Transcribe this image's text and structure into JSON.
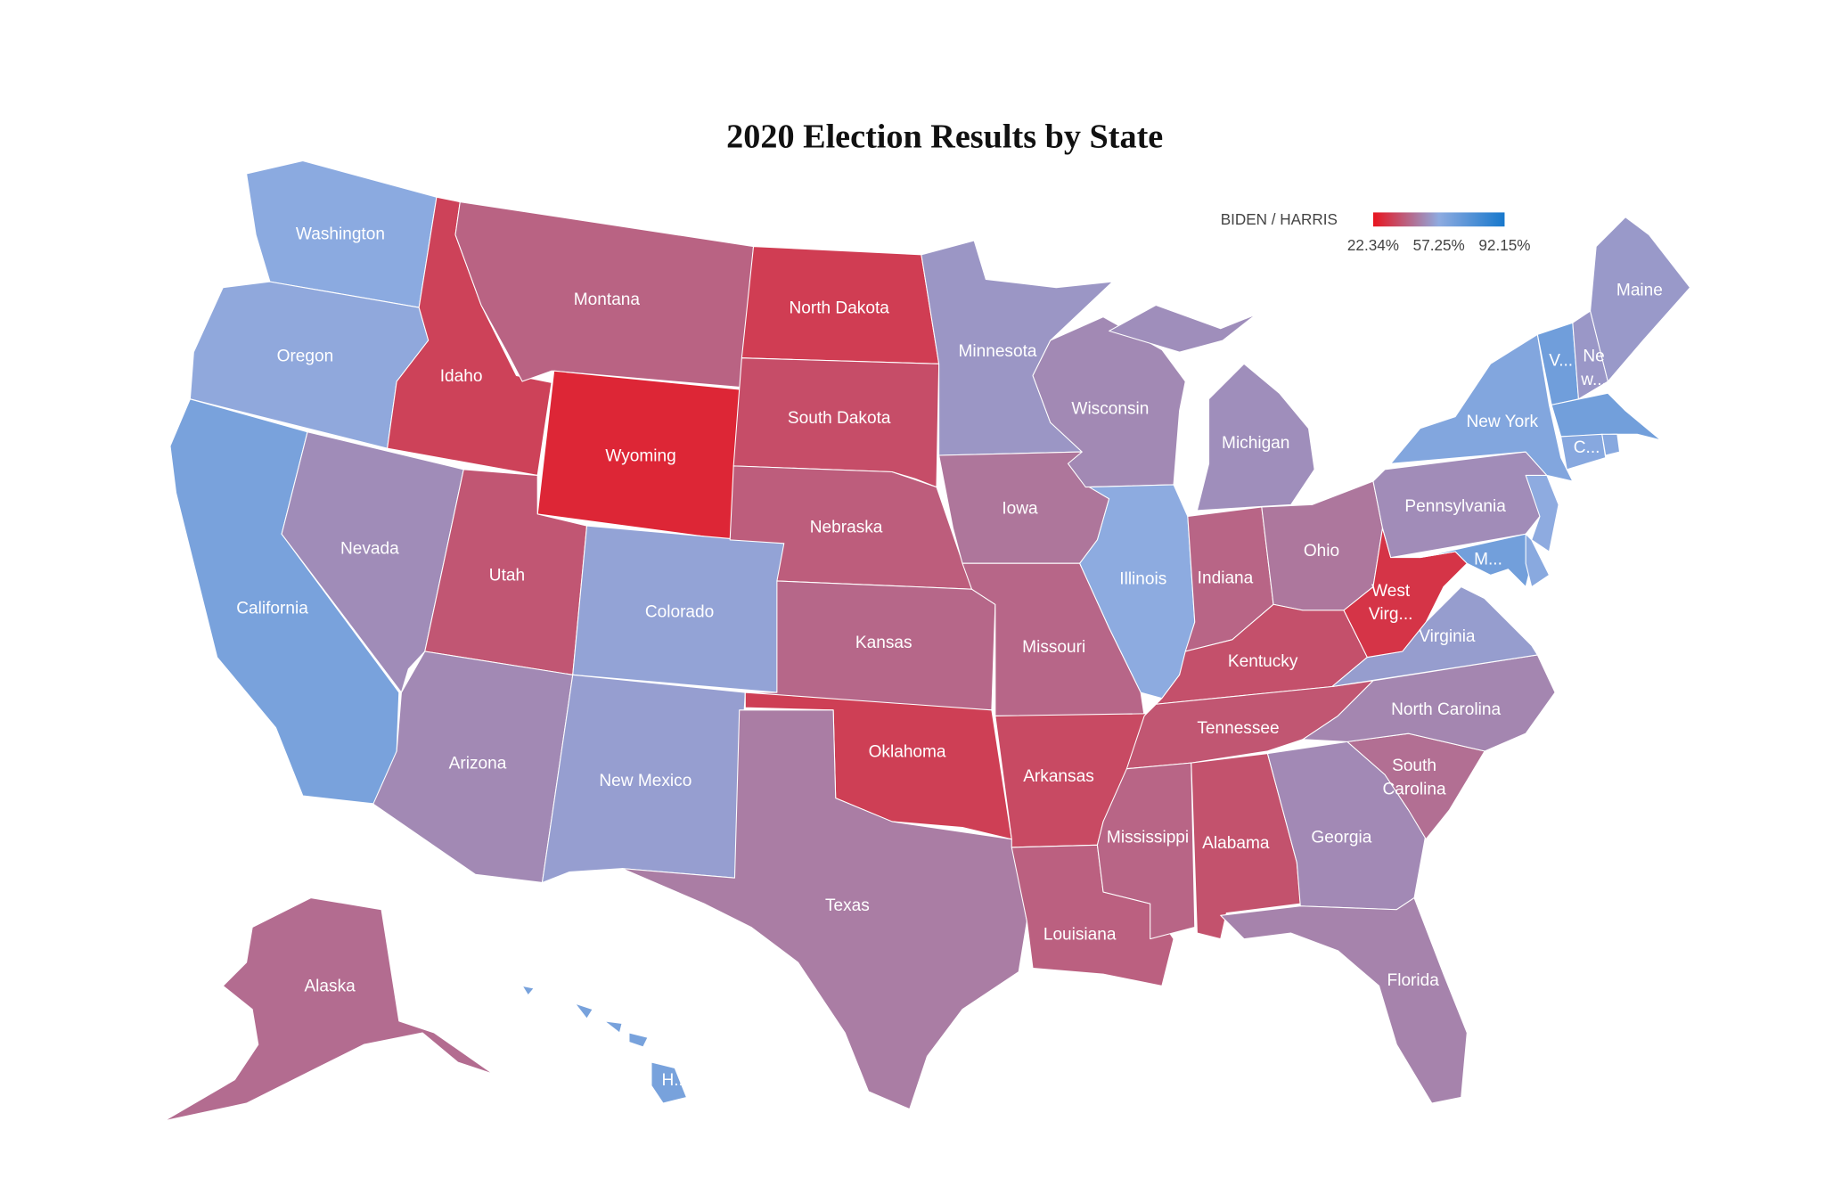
{
  "title": "2020 Election Results by State",
  "legend": {
    "title": "BIDEN / HARRIS",
    "stops": [
      {
        "value": 22.34,
        "label": "22.34%",
        "color": "#e8141e"
      },
      {
        "value": 57.25,
        "label": "57.25%",
        "color": "#8eabe0"
      },
      {
        "value": 92.15,
        "label": "92.15%",
        "color": "#1778cc"
      }
    ]
  },
  "states": [
    {
      "label": "Washington",
      "value": 58
    },
    {
      "label": "Oregon",
      "value": 56.5
    },
    {
      "label": "California",
      "value": 63.5
    },
    {
      "label": "Nevada",
      "value": 50.1
    },
    {
      "label": "Idaho",
      "value": 33
    },
    {
      "label": "Montana",
      "value": 40.5
    },
    {
      "label": "Wyoming",
      "value": 26.6
    },
    {
      "label": "Utah",
      "value": 37.6
    },
    {
      "label": "Colorado",
      "value": 55.4
    },
    {
      "label": "Arizona",
      "value": 49.4
    },
    {
      "label": "New Mexico",
      "value": 54.3
    },
    {
      "label": "North Dakota",
      "value": 31.8
    },
    {
      "label": "South Dakota",
      "value": 35.6
    },
    {
      "label": "Nebraska",
      "value": 39.2
    },
    {
      "label": "Kansas",
      "value": 41.6
    },
    {
      "label": "Oklahoma",
      "value": 32.3
    },
    {
      "label": "Texas",
      "value": 46.5
    },
    {
      "label": "Minnesota",
      "value": 52.4
    },
    {
      "label": "Iowa",
      "value": 44.9
    },
    {
      "label": "Missouri",
      "value": 41.4
    },
    {
      "label": "Arkansas",
      "value": 34.8
    },
    {
      "label": "Louisiana",
      "value": 39.9
    },
    {
      "label": "Wisconsin",
      "value": 49.4
    },
    {
      "label": "Illinois",
      "value": 57.5
    },
    {
      "label": "Michigan",
      "value": 50.6
    },
    {
      "label": "Indiana",
      "value": 41
    },
    {
      "label": "Ohio",
      "value": 45.2
    },
    {
      "label": "Kentucky",
      "value": 36.2
    },
    {
      "label": "Tennessee",
      "value": 37.5
    },
    {
      "label": "Mississippi",
      "value": 41.1
    },
    {
      "label": "Alabama",
      "value": 36.6
    },
    {
      "label": "Georgia",
      "value": 49.5
    },
    {
      "label": "Florida",
      "value": 47.9
    },
    {
      "label": [
        "South",
        "Carolina"
      ],
      "value": 43.4
    },
    {
      "label": "North Carolina",
      "value": 48.6
    },
    {
      "label": "Virginia",
      "value": 54.1
    },
    {
      "label": [
        "West",
        "Virg..."
      ],
      "value": 29.7
    },
    {
      "label": "Pennsylvania",
      "value": 50
    },
    {
      "label": "New York",
      "value": 60.9
    },
    {
      "label": null,
      "value": 57.3
    },
    {
      "label": "M...",
      "value": 65.4
    },
    {
      "label": null,
      "value": 58.7
    },
    {
      "label": "V...",
      "value": 66.1
    },
    {
      "label": [
        "Ne",
        "w..."
      ],
      "value": 52.7
    },
    {
      "label": "Maine",
      "value": 53.1
    },
    {
      "label": null,
      "value": 65.6
    },
    {
      "label": "C...",
      "value": 59.3
    },
    {
      "label": null,
      "value": 59.4
    },
    {
      "label": "Alaska",
      "value": 42.8
    },
    {
      "label": "H...",
      "value": 63.7
    }
  ]
}
